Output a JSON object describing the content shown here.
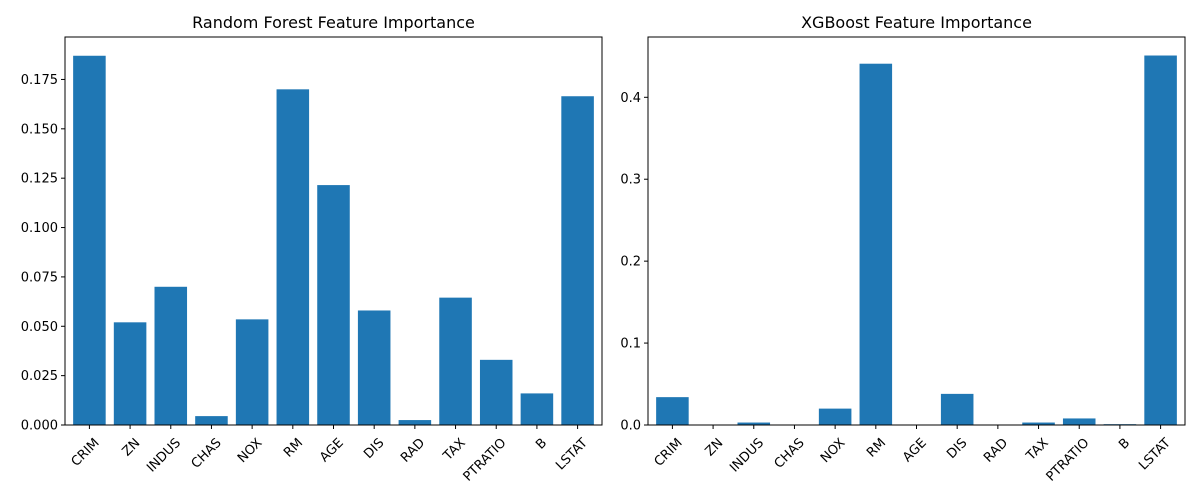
{
  "chart_data": [
    {
      "type": "bar",
      "title": "Random Forest Feature Importance",
      "xlabel": "",
      "ylabel": "",
      "categories": [
        "CRIM",
        "ZN",
        "INDUS",
        "CHAS",
        "NOX",
        "RM",
        "AGE",
        "DIS",
        "RAD",
        "TAX",
        "PTRATIO",
        "B",
        "LSTAT"
      ],
      "values": [
        0.187,
        0.052,
        0.07,
        0.0045,
        0.0535,
        0.17,
        0.1215,
        0.058,
        0.0025,
        0.0645,
        0.033,
        0.016,
        0.1665
      ],
      "ylim": [
        0,
        0.1965
      ],
      "yticks": [
        0.0,
        0.025,
        0.05,
        0.075,
        0.1,
        0.125,
        0.15,
        0.175
      ],
      "ytick_labels": [
        "0.000",
        "0.025",
        "0.050",
        "0.075",
        "0.100",
        "0.125",
        "0.150",
        "0.175"
      ],
      "grid": false,
      "color": "#1f77b4"
    },
    {
      "type": "bar",
      "title": "XGBoost Feature Importance",
      "xlabel": "",
      "ylabel": "",
      "categories": [
        "CRIM",
        "ZN",
        "INDUS",
        "CHAS",
        "NOX",
        "RM",
        "AGE",
        "DIS",
        "RAD",
        "TAX",
        "PTRATIO",
        "B",
        "LSTAT"
      ],
      "values": [
        0.034,
        0.0,
        0.003,
        0.0,
        0.02,
        0.441,
        0.0,
        0.038,
        0.0,
        0.003,
        0.008,
        0.001,
        0.451
      ],
      "ylim": [
        0,
        0.4736
      ],
      "yticks": [
        0.0,
        0.1,
        0.2,
        0.3,
        0.4
      ],
      "ytick_labels": [
        "0.0",
        "0.1",
        "0.2",
        "0.3",
        "0.4"
      ],
      "grid": false,
      "color": "#1f77b4"
    }
  ]
}
